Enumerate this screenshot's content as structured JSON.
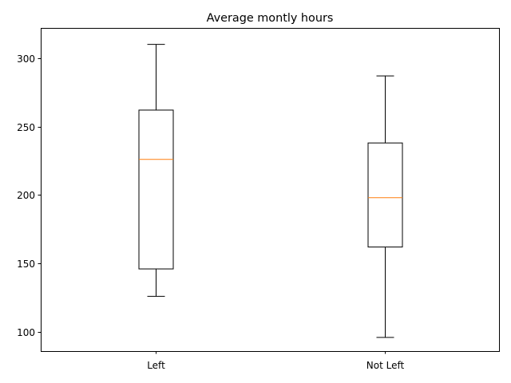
{
  "chart_data": {
    "type": "box",
    "title": "Average montly hours",
    "xlabel": "",
    "ylabel": "",
    "categories": [
      "Left",
      "Not Left"
    ],
    "ylim": [
      86,
      322
    ],
    "yticks": [
      100,
      150,
      200,
      250,
      300
    ],
    "grid": false,
    "series": [
      {
        "whisker_low": 126,
        "q1": 146,
        "median": 226,
        "q3": 262,
        "whisker_high": 310
      },
      {
        "whisker_low": 96,
        "q1": 162,
        "median": 198,
        "q3": 238,
        "whisker_high": 287
      }
    ],
    "colors": {
      "box": "#000000",
      "median": "#ff7f0e",
      "axes": "#000000"
    }
  }
}
